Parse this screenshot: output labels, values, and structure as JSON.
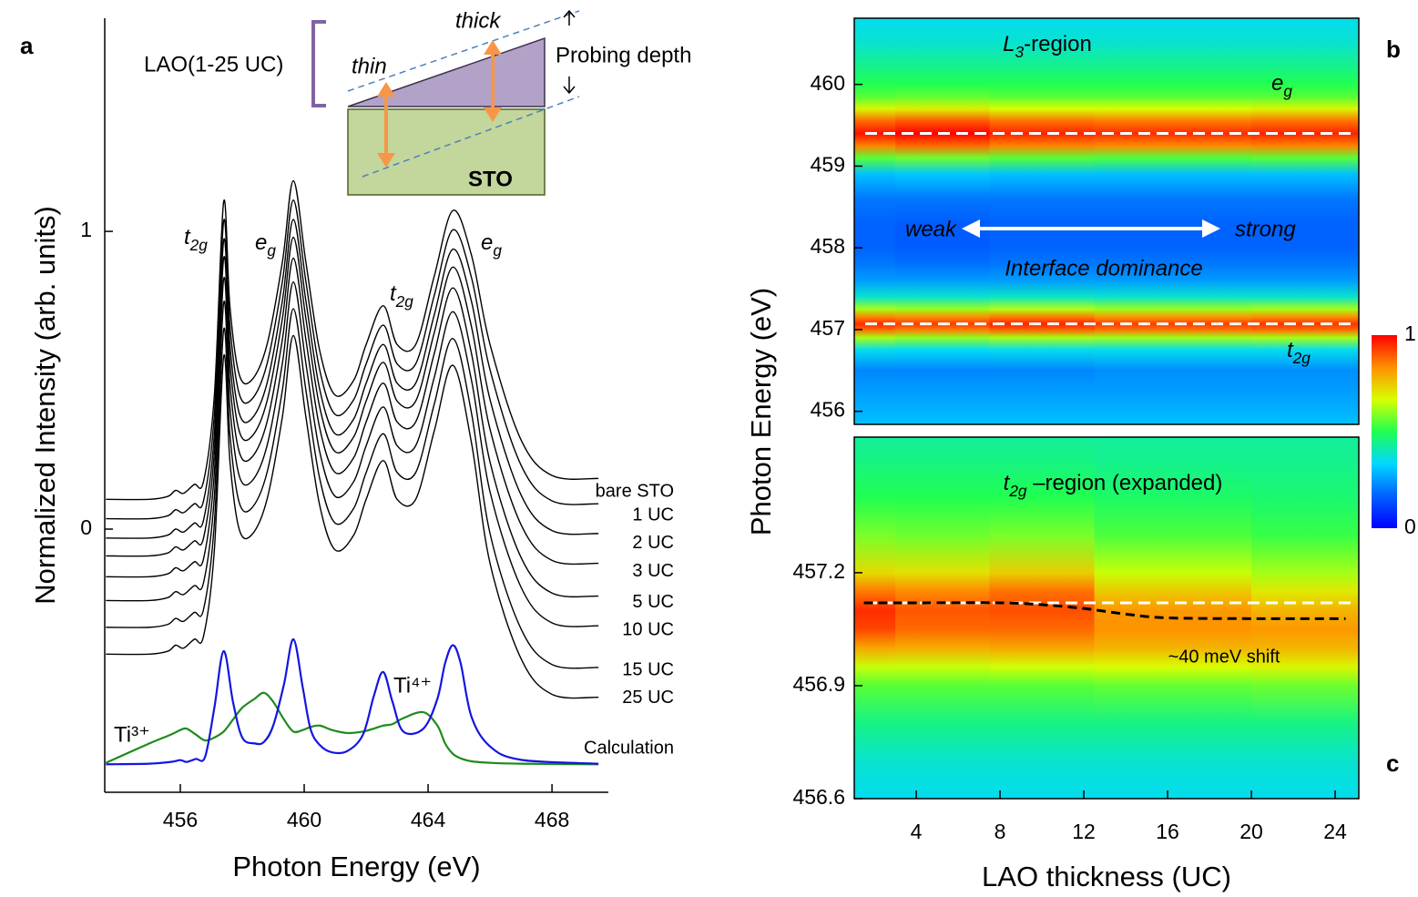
{
  "panel_labels": [
    "a",
    "b",
    "c"
  ],
  "inset": {
    "lao": "LAO(1-25 UC)",
    "thin": "thin",
    "thick": "thick",
    "probing": "Probing depth",
    "sto": "STO"
  },
  "chart_data": [
    {
      "type": "line",
      "x_label": "Photon Energy (eV)",
      "y_label": "Normalized Intensity (arb. units)",
      "xlim": [
        453.56,
        469.82
      ],
      "xticks": [
        456,
        460,
        464,
        468
      ],
      "ylim": [
        -0.884,
        1.716
      ],
      "yticks": [
        0,
        1
      ],
      "annotations": [
        {
          "main": "t",
          "sub": "2g"
        },
        {
          "main": "e",
          "sub": "g"
        },
        {
          "main": "t",
          "sub": "2g"
        },
        {
          "main": "e",
          "sub": "g"
        }
      ],
      "x": [
        453.6,
        455.0,
        455.6,
        455.85,
        456.1,
        456.45,
        456.75,
        457.1,
        457.4,
        457.6,
        457.9,
        458.3,
        458.8,
        459.3,
        459.65,
        460.05,
        460.5,
        461.0,
        461.6,
        462.0,
        462.55,
        463.0,
        463.6,
        464.2,
        464.8,
        465.4,
        466.0,
        467.0,
        468.0,
        469.5
      ],
      "series": [
        {
          "name": "bare STO",
          "color": "#000000",
          "values": [
            0.1,
            0.1,
            0.11,
            0.13,
            0.12,
            0.15,
            0.16,
            0.45,
            1.1,
            0.75,
            0.52,
            0.5,
            0.62,
            0.9,
            1.17,
            0.9,
            0.6,
            0.45,
            0.5,
            0.62,
            0.75,
            0.62,
            0.62,
            0.85,
            1.07,
            0.92,
            0.62,
            0.3,
            0.18,
            0.17
          ]
        },
        {
          "name": "1 UC",
          "color": "#000000",
          "values": [
            0.035,
            0.035,
            0.045,
            0.065,
            0.055,
            0.085,
            0.095,
            0.385,
            1.035,
            0.685,
            0.455,
            0.435,
            0.555,
            0.835,
            1.105,
            0.835,
            0.535,
            0.385,
            0.435,
            0.555,
            0.685,
            0.555,
            0.555,
            0.785,
            1.005,
            0.845,
            0.535,
            0.215,
            0.095,
            0.085
          ]
        },
        {
          "name": "2 UC",
          "color": "#000000",
          "values": [
            -0.03,
            -0.03,
            -0.02,
            0.0,
            -0.01,
            0.02,
            0.03,
            0.32,
            0.97,
            0.62,
            0.39,
            0.37,
            0.49,
            0.77,
            1.04,
            0.77,
            0.47,
            0.32,
            0.37,
            0.49,
            0.62,
            0.49,
            0.49,
            0.72,
            0.94,
            0.765,
            0.435,
            0.115,
            -0.005,
            -0.015
          ]
        },
        {
          "name": "3 UC",
          "color": "#000000",
          "values": [
            -0.09,
            -0.09,
            -0.08,
            -0.06,
            -0.07,
            -0.04,
            -0.03,
            0.26,
            0.91,
            0.56,
            0.33,
            0.31,
            0.43,
            0.71,
            0.98,
            0.71,
            0.41,
            0.26,
            0.31,
            0.43,
            0.56,
            0.43,
            0.43,
            0.66,
            0.88,
            0.68,
            0.335,
            0.015,
            -0.105,
            -0.115
          ]
        },
        {
          "name": "5 UC",
          "color": "#000000",
          "values": [
            -0.16,
            -0.16,
            -0.15,
            -0.13,
            -0.14,
            -0.11,
            -0.1,
            0.19,
            0.84,
            0.49,
            0.26,
            0.24,
            0.36,
            0.64,
            0.91,
            0.64,
            0.34,
            0.19,
            0.24,
            0.36,
            0.49,
            0.36,
            0.36,
            0.59,
            0.81,
            0.59,
            0.225,
            -0.095,
            -0.215,
            -0.225
          ]
        },
        {
          "name": "10 UC",
          "color": "#000000",
          "values": [
            -0.24,
            -0.24,
            -0.23,
            -0.21,
            -0.22,
            -0.19,
            -0.18,
            0.11,
            0.76,
            0.41,
            0.18,
            0.16,
            0.28,
            0.56,
            0.83,
            0.56,
            0.26,
            0.11,
            0.16,
            0.28,
            0.41,
            0.28,
            0.28,
            0.51,
            0.73,
            0.5,
            0.125,
            -0.195,
            -0.315,
            -0.325
          ]
        },
        {
          "name": "15 UC",
          "color": "#000000",
          "values": [
            -0.33,
            -0.33,
            -0.32,
            -0.3,
            -0.31,
            -0.28,
            -0.27,
            0.02,
            0.67,
            0.32,
            0.09,
            0.07,
            0.19,
            0.47,
            0.74,
            0.47,
            0.17,
            0.02,
            0.07,
            0.19,
            0.32,
            0.19,
            0.19,
            0.42,
            0.64,
            0.39,
            -0.015,
            -0.335,
            -0.455,
            -0.465
          ]
        },
        {
          "name": "25 UC",
          "color": "#000000",
          "values": [
            -0.42,
            -0.42,
            -0.41,
            -0.39,
            -0.4,
            -0.37,
            -0.36,
            -0.07,
            0.58,
            0.23,
            0.0,
            -0.02,
            0.1,
            0.38,
            0.65,
            0.38,
            0.08,
            -0.07,
            -0.02,
            0.1,
            0.23,
            0.1,
            0.1,
            0.33,
            0.55,
            0.29,
            -0.115,
            -0.435,
            -0.555,
            -0.565
          ]
        }
      ],
      "calculation_label": "Calculation",
      "calculation": {
        "x": [
          453.6,
          455.0,
          455.7,
          456.0,
          456.2,
          456.5,
          456.8,
          457.1,
          457.4,
          457.7,
          458.0,
          458.4,
          458.7,
          459.0,
          459.35,
          459.65,
          459.95,
          460.2,
          460.5,
          460.9,
          461.4,
          461.9,
          462.25,
          462.55,
          462.85,
          463.2,
          463.85,
          464.3,
          464.55,
          464.8,
          465.05,
          465.4,
          466.0,
          467.0,
          469.5
        ],
        "series": [
          {
            "name": "Ti³⁺",
            "color": "#1e8a1e",
            "values": [
              -0.785,
              -0.72,
              -0.69,
              -0.675,
              -0.67,
              -0.69,
              -0.71,
              -0.7,
              -0.68,
              -0.64,
              -0.6,
              -0.57,
              -0.55,
              -0.58,
              -0.64,
              -0.68,
              -0.675,
              -0.665,
              -0.66,
              -0.675,
              -0.685,
              -0.68,
              -0.67,
              -0.66,
              -0.655,
              -0.635,
              -0.615,
              -0.66,
              -0.72,
              -0.755,
              -0.77,
              -0.78,
              -0.785,
              -0.788,
              -0.79
            ]
          },
          {
            "name": "Ti⁴⁺",
            "color": "#1515e0",
            "values": [
              -0.79,
              -0.788,
              -0.782,
              -0.776,
              -0.782,
              -0.772,
              -0.765,
              -0.6,
              -0.41,
              -0.58,
              -0.7,
              -0.72,
              -0.715,
              -0.66,
              -0.52,
              -0.37,
              -0.53,
              -0.67,
              -0.725,
              -0.75,
              -0.745,
              -0.69,
              -0.56,
              -0.48,
              -0.58,
              -0.68,
              -0.67,
              -0.57,
              -0.45,
              -0.39,
              -0.45,
              -0.63,
              -0.73,
              -0.775,
              -0.788
            ]
          }
        ]
      }
    },
    {
      "type": "heatmap",
      "y_label": "Photon Energy (eV)",
      "region_label": {
        "main": "L",
        "sub": "3",
        "rest": "-region"
      },
      "annotations": [
        {
          "main": "e",
          "sub": "g"
        },
        {
          "main": "t",
          "sub": "2g"
        }
      ],
      "weak": "weak",
      "strong": "strong",
      "dominance": "Interface dominance",
      "xlim": [
        1.04,
        25.13
      ],
      "ylim": [
        455.84,
        460.81
      ],
      "yticks": [
        456,
        457,
        458,
        459,
        460
      ],
      "x": [
        1,
        5,
        10,
        15,
        25
      ],
      "y": [
        455.84,
        456.0,
        456.25,
        456.5,
        456.75,
        456.9,
        457.0,
        457.07,
        457.15,
        457.25,
        457.4,
        457.6,
        457.8,
        458.0,
        458.3,
        458.6,
        458.9,
        459.1,
        459.25,
        459.4,
        459.55,
        459.7,
        459.85,
        460.0,
        460.2,
        460.5,
        460.81
      ],
      "z": [
        [
          0.3,
          0.28,
          0.25,
          0.22,
          0.35,
          0.62,
          0.88,
          0.95,
          0.85,
          0.62,
          0.38,
          0.25,
          0.2,
          0.17,
          0.17,
          0.2,
          0.3,
          0.55,
          0.85,
          0.98,
          0.88,
          0.68,
          0.55,
          0.5,
          0.45,
          0.38,
          0.35
        ],
        [
          0.3,
          0.28,
          0.25,
          0.22,
          0.34,
          0.6,
          0.86,
          0.93,
          0.84,
          0.61,
          0.38,
          0.25,
          0.19,
          0.16,
          0.16,
          0.2,
          0.31,
          0.57,
          0.88,
          1.0,
          0.9,
          0.69,
          0.56,
          0.5,
          0.45,
          0.38,
          0.35
        ],
        [
          0.3,
          0.28,
          0.25,
          0.22,
          0.35,
          0.62,
          0.89,
          0.96,
          0.86,
          0.63,
          0.39,
          0.25,
          0.2,
          0.17,
          0.17,
          0.2,
          0.3,
          0.55,
          0.85,
          0.96,
          0.87,
          0.67,
          0.55,
          0.5,
          0.45,
          0.38,
          0.35
        ],
        [
          0.3,
          0.28,
          0.25,
          0.23,
          0.35,
          0.61,
          0.87,
          0.93,
          0.83,
          0.61,
          0.38,
          0.25,
          0.2,
          0.17,
          0.17,
          0.2,
          0.3,
          0.54,
          0.84,
          0.95,
          0.86,
          0.67,
          0.55,
          0.5,
          0.45,
          0.38,
          0.35
        ],
        [
          0.3,
          0.28,
          0.25,
          0.23,
          0.35,
          0.62,
          0.88,
          0.94,
          0.84,
          0.62,
          0.38,
          0.25,
          0.2,
          0.17,
          0.17,
          0.2,
          0.3,
          0.55,
          0.85,
          0.96,
          0.87,
          0.68,
          0.55,
          0.5,
          0.45,
          0.38,
          0.35
        ]
      ],
      "ref_lines": [
        459.4,
        457.07
      ],
      "colormap": [
        "#0000ff",
        "#0060ff",
        "#00d8ff",
        "#20ff50",
        "#d8ff00",
        "#ff9000",
        "#ff0000"
      ],
      "clim": [
        0,
        1
      ],
      "cticks": [
        0,
        1
      ]
    },
    {
      "type": "heatmap",
      "x_label": "LAO thickness (UC)",
      "region_label": {
        "main": "t",
        "sub": "2g",
        "rest": " –region (expanded)"
      },
      "shift_label": "~40 meV shift",
      "xlim": [
        1.04,
        25.13
      ],
      "xticks": [
        4,
        8,
        12,
        16,
        20,
        24
      ],
      "ylim": [
        456.6,
        457.56
      ],
      "yticks": [
        456.6,
        456.9,
        457.2
      ],
      "x": [
        1,
        5,
        10,
        15,
        25
      ],
      "y": [
        456.6,
        456.7,
        456.8,
        456.9,
        456.95,
        457.0,
        457.05,
        457.1,
        457.15,
        457.2,
        457.3,
        457.4,
        457.5,
        457.56
      ],
      "z": [
        [
          0.35,
          0.38,
          0.45,
          0.55,
          0.65,
          0.8,
          0.92,
          0.95,
          0.86,
          0.72,
          0.58,
          0.5,
          0.45,
          0.43
        ],
        [
          0.35,
          0.38,
          0.45,
          0.55,
          0.65,
          0.79,
          0.88,
          0.9,
          0.84,
          0.71,
          0.57,
          0.5,
          0.45,
          0.43
        ],
        [
          0.35,
          0.38,
          0.45,
          0.55,
          0.66,
          0.8,
          0.88,
          0.91,
          0.87,
          0.74,
          0.58,
          0.5,
          0.45,
          0.43
        ],
        [
          0.35,
          0.38,
          0.45,
          0.56,
          0.67,
          0.78,
          0.83,
          0.82,
          0.75,
          0.65,
          0.54,
          0.48,
          0.44,
          0.43
        ],
        [
          0.35,
          0.38,
          0.45,
          0.57,
          0.68,
          0.78,
          0.82,
          0.78,
          0.7,
          0.62,
          0.52,
          0.47,
          0.44,
          0.43
        ]
      ],
      "ref_lines": [
        457.12
      ],
      "shift_line": {
        "x": [
          1.5,
          4,
          8,
          10,
          12,
          14,
          16,
          20,
          24.5
        ],
        "values": [
          457.12,
          457.12,
          457.12,
          457.115,
          457.105,
          457.09,
          457.08,
          457.078,
          457.078
        ]
      }
    }
  ]
}
